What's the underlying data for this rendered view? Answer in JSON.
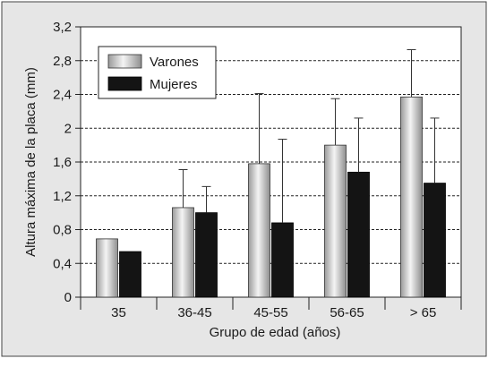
{
  "chart_data": {
    "type": "bar",
    "title": "",
    "xlabel": "Grupo de edad (años)",
    "ylabel": "Altura máxima de la placa (mm)",
    "ylim": [
      0,
      3.2
    ],
    "yticks": [
      "0",
      "0,4",
      "0,8",
      "1,2",
      "1,6",
      "2",
      "2,4",
      "2,8",
      "3,2"
    ],
    "ytick_values": [
      0,
      0.4,
      0.8,
      1.2,
      1.6,
      2.0,
      2.4,
      2.8,
      3.2
    ],
    "categories": [
      "35",
      "36-45",
      "45-55",
      "56-65",
      "> 65"
    ],
    "grid": "horizontal dashed",
    "legend": "top-left",
    "error_bars": "upper",
    "series": [
      {
        "name": "Varones",
        "color": "#d8d8d8",
        "values": [
          0.69,
          1.06,
          1.58,
          1.8,
          2.37
        ],
        "error_upper": [
          null,
          1.51,
          2.41,
          2.35,
          2.93
        ]
      },
      {
        "name": "Mujeres",
        "color": "#141414",
        "values": [
          0.54,
          1.0,
          0.88,
          1.48,
          1.35
        ],
        "error_upper": [
          null,
          1.31,
          1.87,
          2.12,
          2.12
        ]
      }
    ]
  }
}
